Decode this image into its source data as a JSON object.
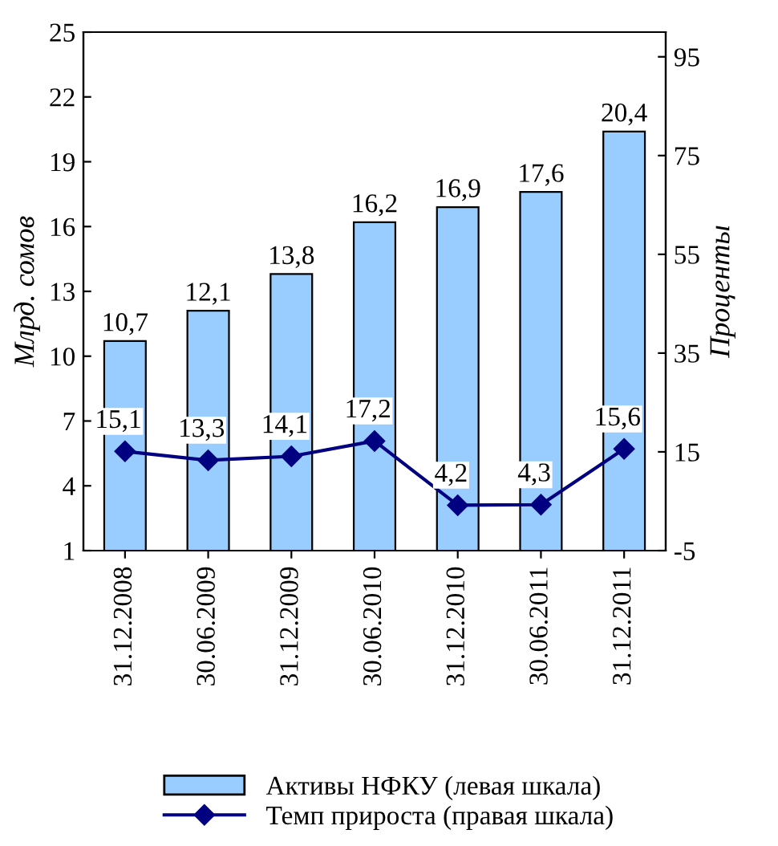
{
  "chart_data": {
    "type": "bar",
    "ylabel": "Млрд. сомов",
    "y2label": "Проценты",
    "categories": [
      "31.12.2008",
      "30.06.2009",
      "31.12.2009",
      "30.06.2010",
      "31.12.2010",
      "30.06.2011",
      "31.12.2011"
    ],
    "series": [
      {
        "name": "Активы НФКУ (левая шкала)",
        "color": "#99ccff",
        "values": [
          10.7,
          12.1,
          13.8,
          16.2,
          16.9,
          17.6,
          20.4
        ],
        "value_labels": [
          "10,7",
          "12,1",
          "13,8",
          "16,2",
          "16,9",
          "17,6",
          "20,4"
        ]
      },
      {
        "name": "Темп прироста (правая шкала)",
        "type": "line",
        "axis": "y2",
        "color": "#000080",
        "marker": "diamond",
        "values": [
          15.1,
          13.3,
          14.1,
          17.2,
          4.2,
          4.3,
          15.6
        ],
        "value_labels": [
          "15,1",
          "13,3",
          "14,1",
          "17,2",
          "4,2",
          "4,3",
          "15,6"
        ]
      }
    ],
    "ylim": [
      1,
      25
    ],
    "yticks": [
      1,
      4,
      7,
      10,
      13,
      16,
      19,
      22,
      25
    ],
    "y2lim": [
      -5,
      100
    ],
    "y2ticks": [
      -5,
      15,
      35,
      55,
      75,
      95
    ],
    "grid": false,
    "legend": "bottom"
  }
}
